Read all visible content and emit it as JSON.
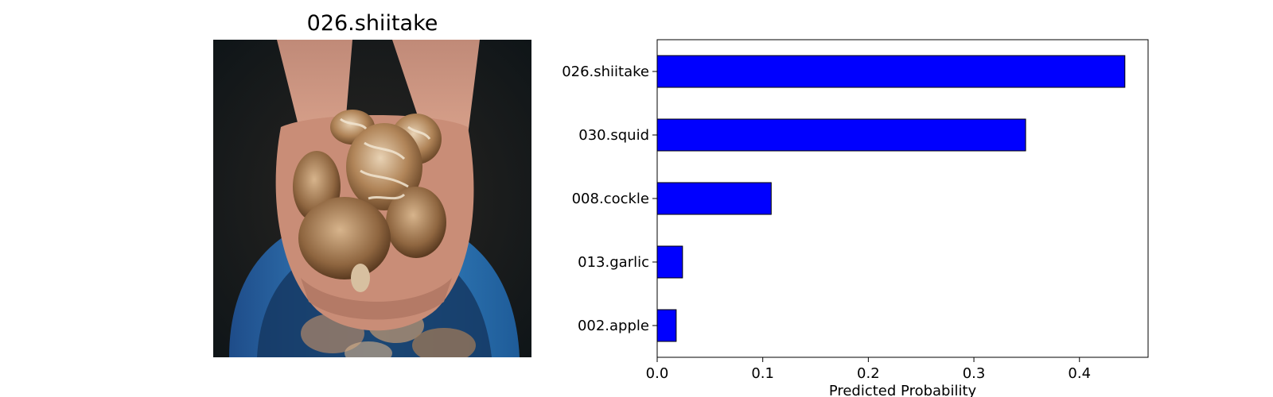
{
  "image_panel": {
    "title": "026.shiitake",
    "photo": "hands holding shiitake mushrooms over a blue basket"
  },
  "chart_data": {
    "type": "bar",
    "orientation": "horizontal",
    "title": "",
    "categories": [
      "026.shiitake",
      "030.squid",
      "008.cockle",
      "013.garlic",
      "002.apple"
    ],
    "values": [
      0.443,
      0.349,
      0.108,
      0.024,
      0.018
    ],
    "xlabel": "Predicted Probability",
    "ylabel": "",
    "xlim": [
      0,
      0.465
    ],
    "xticks": [
      0.0,
      0.1,
      0.2,
      0.3,
      0.4
    ],
    "xtick_labels": [
      "0.0",
      "0.1",
      "0.2",
      "0.3",
      "0.4"
    ],
    "grid": false,
    "bar_color": "#0000ff",
    "bar_edge_color": "#000000"
  }
}
